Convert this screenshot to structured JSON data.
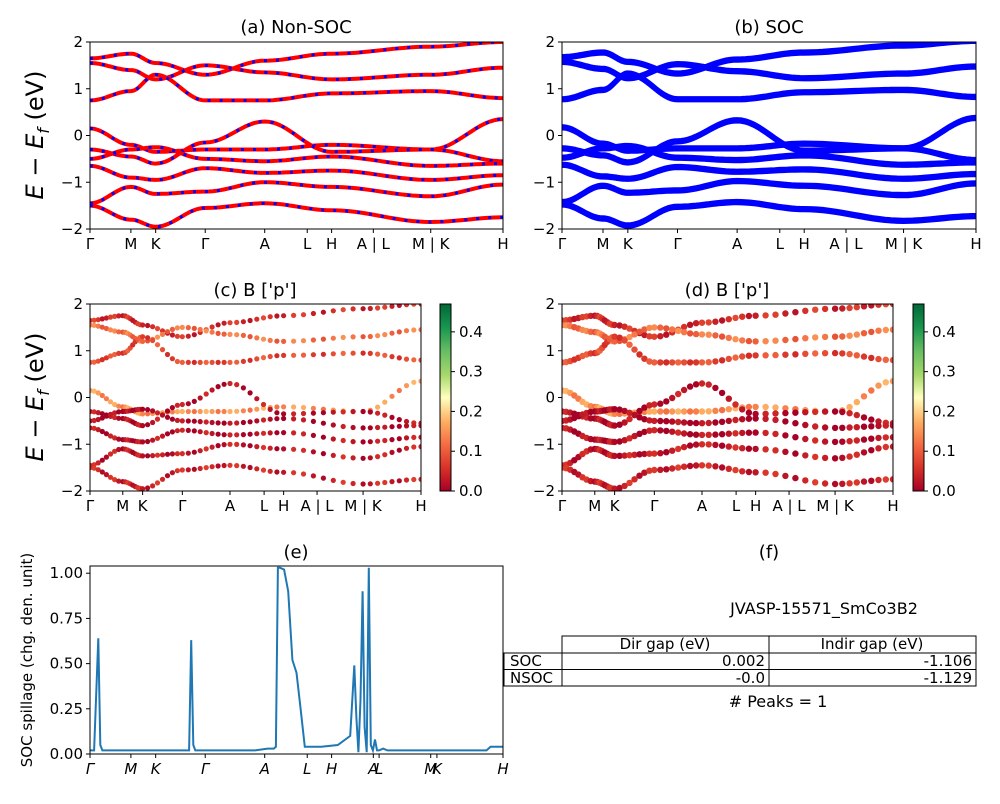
{
  "figure": {
    "kpath_labels": [
      "Γ",
      "M",
      "K",
      "Γ",
      "A",
      "L",
      "H",
      "A | L",
      "M | K",
      "H"
    ],
    "kpath_labels_spillage": [
      "Γ",
      "M",
      "K",
      "Γ",
      "A",
      "L",
      "H",
      "A",
      "L",
      "M",
      "K",
      "H"
    ],
    "energy_ylabel": "E − E_f (eV)",
    "colorbar_ticks": [
      "0.0",
      "0.1",
      "0.2",
      "0.3",
      "0.4"
    ],
    "colors": {
      "nonsoc_line": "#ff0000",
      "nonsoc_dash": "#0000ff",
      "soc_line": "#0000ff",
      "spillage_line": "#1f77b4"
    }
  },
  "chart_data": [
    {
      "panel": "a",
      "type": "line",
      "title": "(a) Non-SOC",
      "ylabel": "E − E_f (eV)",
      "ylim": [
        -2,
        2
      ],
      "yticks": [
        "−2",
        "−1",
        "0",
        "1",
        "2"
      ],
      "series": [
        {
          "values": [
            1.65,
            1.75,
            1.55,
            1.3,
            1.6,
            1.75,
            1.9,
            2.0
          ]
        },
        {
          "values": [
            1.55,
            1.4,
            1.2,
            1.5,
            1.35,
            1.2,
            1.3,
            1.45
          ]
        },
        {
          "values": [
            0.75,
            0.95,
            1.3,
            0.75,
            0.75,
            0.9,
            0.95,
            0.8
          ]
        },
        {
          "values": [
            0.15,
            -0.2,
            -0.35,
            -0.3,
            -0.3,
            -0.2,
            -0.3,
            0.35
          ]
        },
        {
          "values": [
            -0.3,
            -0.45,
            -0.6,
            -0.15,
            0.3,
            -0.35,
            -0.3,
            -0.55
          ]
        },
        {
          "values": [
            -0.5,
            -0.3,
            -0.25,
            -0.5,
            -0.55,
            -0.45,
            -0.65,
            -0.6
          ]
        },
        {
          "values": [
            -0.65,
            -0.9,
            -0.95,
            -0.7,
            -0.8,
            -0.75,
            -0.95,
            -0.85
          ]
        },
        {
          "values": [
            -1.45,
            -1.1,
            -1.25,
            -1.2,
            -1.0,
            -1.1,
            -1.3,
            -1.05
          ]
        },
        {
          "values": [
            -1.5,
            -1.8,
            -1.95,
            -1.55,
            -1.45,
            -1.6,
            -1.85,
            -1.75
          ]
        }
      ]
    },
    {
      "panel": "b",
      "type": "line",
      "title": "(b) SOC",
      "ylim": [
        -2,
        2
      ],
      "yticks": [
        "−2",
        "−1",
        "0",
        "1",
        "2"
      ],
      "series": [
        {
          "values": [
            1.65,
            1.75,
            1.55,
            1.3,
            1.6,
            1.75,
            1.9,
            2.0
          ]
        },
        {
          "values": [
            1.55,
            1.4,
            1.2,
            1.5,
            1.35,
            1.2,
            1.3,
            1.45
          ]
        },
        {
          "values": [
            0.75,
            0.95,
            1.3,
            0.75,
            0.75,
            0.9,
            0.95,
            0.8
          ]
        },
        {
          "values": [
            0.15,
            -0.2,
            -0.35,
            -0.3,
            -0.3,
            -0.2,
            -0.3,
            0.35
          ]
        },
        {
          "values": [
            -0.3,
            -0.45,
            -0.6,
            -0.15,
            0.3,
            -0.35,
            -0.3,
            -0.55
          ]
        },
        {
          "values": [
            -0.5,
            -0.3,
            -0.25,
            -0.5,
            -0.55,
            -0.45,
            -0.65,
            -0.6
          ]
        },
        {
          "values": [
            -0.65,
            -0.9,
            -0.95,
            -0.7,
            -0.8,
            -0.75,
            -0.95,
            -0.85
          ]
        },
        {
          "values": [
            -1.45,
            -1.1,
            -1.25,
            -1.2,
            -1.0,
            -1.1,
            -1.3,
            -1.05
          ]
        },
        {
          "values": [
            -1.5,
            -1.8,
            -1.95,
            -1.55,
            -1.45,
            -1.6,
            -1.85,
            -1.75
          ]
        }
      ]
    },
    {
      "panel": "c",
      "type": "scatter",
      "title": "(c)  B ['p']",
      "ylabel": "E − E_f (eV)",
      "ylim": [
        -2,
        2
      ],
      "yticks": [
        "−2",
        "−1",
        "0",
        "1",
        "2"
      ],
      "colorbar_range": [
        0.0,
        0.47
      ],
      "series": [
        {
          "values": [
            1.65,
            1.75,
            1.55,
            1.3,
            1.6,
            1.75,
            1.9,
            2.0
          ],
          "weight": 0.05
        },
        {
          "values": [
            1.55,
            1.4,
            1.2,
            1.5,
            1.35,
            1.2,
            1.3,
            1.45
          ],
          "weight": 0.12
        },
        {
          "values": [
            0.75,
            0.95,
            1.3,
            0.75,
            0.75,
            0.9,
            0.95,
            0.8
          ],
          "weight": 0.08
        },
        {
          "values": [
            0.15,
            -0.2,
            -0.35,
            -0.3,
            -0.3,
            -0.2,
            -0.3,
            0.35
          ],
          "weight": 0.15
        },
        {
          "values": [
            -0.3,
            -0.45,
            -0.6,
            -0.15,
            0.3,
            -0.35,
            -0.3,
            -0.55
          ],
          "weight": 0.02
        },
        {
          "values": [
            -0.5,
            -0.3,
            -0.25,
            -0.5,
            -0.55,
            -0.45,
            -0.65,
            -0.6
          ],
          "weight": 0.01
        },
        {
          "values": [
            -0.65,
            -0.9,
            -0.95,
            -0.7,
            -0.8,
            -0.75,
            -0.95,
            -0.85
          ],
          "weight": 0.02
        },
        {
          "values": [
            -1.45,
            -1.1,
            -1.25,
            -1.2,
            -1.0,
            -1.1,
            -1.3,
            -1.05
          ],
          "weight": 0.03
        },
        {
          "values": [
            -1.5,
            -1.8,
            -1.95,
            -1.55,
            -1.45,
            -1.6,
            -1.85,
            -1.75
          ],
          "weight": 0.04
        }
      ]
    },
    {
      "panel": "d",
      "type": "scatter",
      "title": "(d) B ['p']",
      "ylim": [
        -2,
        2
      ],
      "yticks": [
        "−2",
        "−1",
        "0",
        "1",
        "2"
      ],
      "colorbar_range": [
        0.0,
        0.47
      ],
      "series": [
        {
          "values": [
            1.65,
            1.75,
            1.55,
            1.3,
            1.6,
            1.75,
            1.9,
            2.0
          ],
          "weight": 0.05
        },
        {
          "values": [
            1.55,
            1.4,
            1.2,
            1.5,
            1.35,
            1.2,
            1.3,
            1.45
          ],
          "weight": 0.12
        },
        {
          "values": [
            0.75,
            0.95,
            1.3,
            0.75,
            0.75,
            0.9,
            0.95,
            0.8
          ],
          "weight": 0.08
        },
        {
          "values": [
            0.15,
            -0.2,
            -0.35,
            -0.3,
            -0.3,
            -0.2,
            -0.3,
            0.35
          ],
          "weight": 0.15
        },
        {
          "values": [
            -0.3,
            -0.45,
            -0.6,
            -0.15,
            0.3,
            -0.35,
            -0.3,
            -0.55
          ],
          "weight": 0.02
        },
        {
          "values": [
            -0.5,
            -0.3,
            -0.25,
            -0.5,
            -0.55,
            -0.45,
            -0.65,
            -0.6
          ],
          "weight": 0.01
        },
        {
          "values": [
            -0.65,
            -0.9,
            -0.95,
            -0.7,
            -0.8,
            -0.75,
            -0.95,
            -0.85
          ],
          "weight": 0.02
        },
        {
          "values": [
            -1.45,
            -1.1,
            -1.25,
            -1.2,
            -1.0,
            -1.1,
            -1.3,
            -1.05
          ],
          "weight": 0.03
        },
        {
          "values": [
            -1.5,
            -1.8,
            -1.95,
            -1.55,
            -1.45,
            -1.6,
            -1.85,
            -1.75
          ],
          "weight": 0.04
        }
      ]
    },
    {
      "panel": "e",
      "type": "line",
      "title": "(e)",
      "ylabel": "SOC spillage (chg. den. unit)",
      "ylim": [
        0,
        1.04
      ],
      "yticks": [
        "0.00",
        "0.25",
        "0.50",
        "0.75",
        "1.00"
      ],
      "x": [
        0,
        0.01,
        0.02,
        0.025,
        0.03,
        0.2,
        0.24,
        0.245,
        0.25,
        0.255,
        0.26,
        0.3,
        0.4,
        0.43,
        0.445,
        0.45,
        0.455,
        0.46,
        0.47,
        0.48,
        0.49,
        0.5,
        0.51,
        0.52,
        0.56,
        0.6,
        0.63,
        0.64,
        0.645,
        0.65,
        0.655,
        0.66,
        0.665,
        0.67,
        0.675,
        0.68,
        0.685,
        0.69,
        0.695,
        0.7,
        0.71,
        0.72,
        0.74,
        0.8,
        0.96,
        0.97,
        1.0
      ],
      "values": [
        0.02,
        0.02,
        0.64,
        0.05,
        0.02,
        0.02,
        0.02,
        0.63,
        0.05,
        0.02,
        0.02,
        0.02,
        0.02,
        0.03,
        0.03,
        0.04,
        1.03,
        1.03,
        1.02,
        0.9,
        0.52,
        0.45,
        0.25,
        0.04,
        0.04,
        0.05,
        0.1,
        0.49,
        0.2,
        0.01,
        0.3,
        0.9,
        0.15,
        0.01,
        1.03,
        0.05,
        0.02,
        0.08,
        0.02,
        0.02,
        0.03,
        0.02,
        0.02,
        0.02,
        0.02,
        0.04,
        0.04
      ]
    }
  ],
  "table_panel": {
    "title": "(f)",
    "material": "JVASP-15571_SmCo3B2",
    "headers": [
      "",
      "Dir gap (eV)",
      "Indir gap (eV)"
    ],
    "rows": [
      {
        "label": "SOC",
        "dir": "0.002",
        "indir": "-1.106"
      },
      {
        "label": "NSOC",
        "dir": "-0.0",
        "indir": "-1.129"
      }
    ],
    "peaks": "# Peaks = 1"
  }
}
